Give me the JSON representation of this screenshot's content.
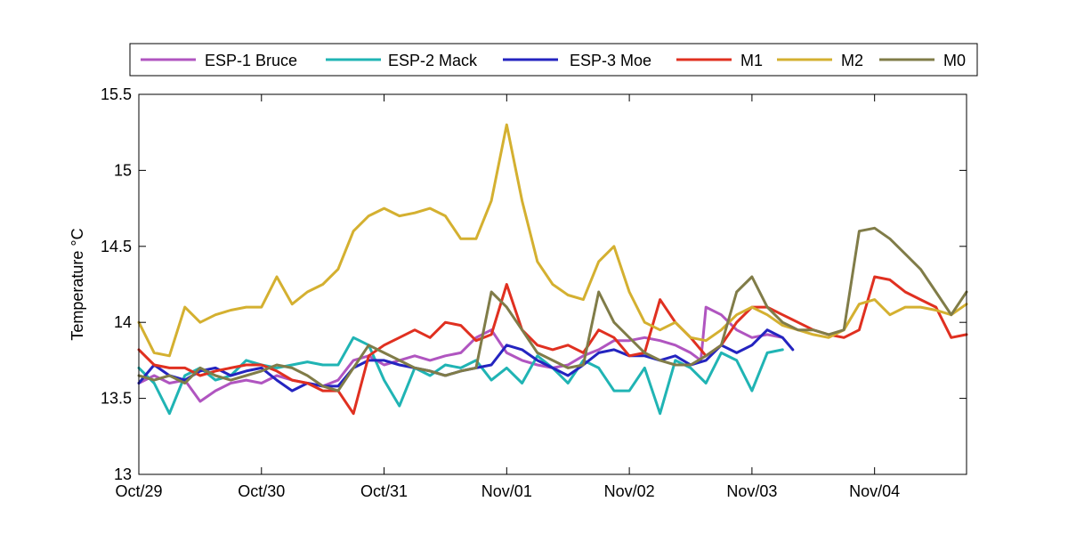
{
  "chart_data": {
    "type": "line",
    "title": "",
    "xlabel": "",
    "ylabel": "Temperature °C",
    "xlim": [
      "Oct/29",
      "Nov/04 18:00"
    ],
    "ylim": [
      13,
      15.5
    ],
    "x_ticks": [
      "Oct/29",
      "Oct/30",
      "Oct/31",
      "Nov/01",
      "Nov/02",
      "Nov/03",
      "Nov/04"
    ],
    "y_ticks": [
      "13",
      "13.5",
      "14",
      "14.5",
      "15",
      "15.5"
    ],
    "grid": false,
    "legend": "top, horizontal",
    "series": [
      {
        "name": "ESP-1 Bruce",
        "color": "#b055c0",
        "x": [
          "Oct/29 00:00",
          "Oct/29 03:00",
          "Oct/29 06:00",
          "Oct/29 09:00",
          "Oct/29 12:00",
          "Oct/29 15:00",
          "Oct/29 18:00",
          "Oct/29 21:00",
          "Oct/30 00:00",
          "Oct/30 03:00",
          "Oct/30 06:00",
          "Oct/30 09:00",
          "Oct/30 12:00",
          "Oct/30 15:00",
          "Oct/30 18:00",
          "Oct/30 21:00",
          "Oct/31 00:00",
          "Oct/31 03:00",
          "Oct/31 06:00",
          "Oct/31 09:00",
          "Oct/31 12:00",
          "Oct/31 15:00",
          "Oct/31 18:00",
          "Oct/31 21:00",
          "Nov/01 00:00",
          "Nov/01 03:00",
          "Nov/01 06:00",
          "Nov/01 09:00",
          "Nov/01 12:00",
          "Nov/01 15:00",
          "Nov/01 18:00",
          "Nov/01 21:00",
          "Nov/02 00:00",
          "Nov/02 03:00",
          "Nov/02 06:00",
          "Nov/02 09:00",
          "Nov/02 12:00",
          "Nov/02 14:00",
          "Nov/02 15:00",
          "Nov/02 18:00",
          "Nov/02 21:00",
          "Nov/03 00:00",
          "Nov/03 03:00",
          "Nov/03 06:00"
        ],
        "y": [
          13.6,
          13.65,
          13.6,
          13.62,
          13.48,
          13.55,
          13.6,
          13.62,
          13.6,
          13.65,
          13.62,
          13.6,
          13.58,
          13.62,
          13.75,
          13.78,
          13.72,
          13.75,
          13.78,
          13.75,
          13.78,
          13.8,
          13.9,
          13.95,
          13.8,
          13.75,
          13.72,
          13.7,
          13.72,
          13.78,
          13.82,
          13.88,
          13.88,
          13.9,
          13.88,
          13.85,
          13.8,
          13.75,
          14.1,
          14.05,
          13.95,
          13.9,
          13.92,
          13.9
        ]
      },
      {
        "name": "ESP-2 Mack",
        "color": "#20b4b4",
        "x": [
          "Oct/29 00:00",
          "Oct/29 03:00",
          "Oct/29 06:00",
          "Oct/29 09:00",
          "Oct/29 12:00",
          "Oct/29 15:00",
          "Oct/29 18:00",
          "Oct/29 21:00",
          "Oct/30 00:00",
          "Oct/30 03:00",
          "Oct/30 06:00",
          "Oct/30 09:00",
          "Oct/30 12:00",
          "Oct/30 15:00",
          "Oct/30 18:00",
          "Oct/30 21:00",
          "Oct/31 00:00",
          "Oct/31 03:00",
          "Oct/31 06:00",
          "Oct/31 09:00",
          "Oct/31 12:00",
          "Oct/31 15:00",
          "Oct/31 18:00",
          "Oct/31 21:00",
          "Nov/01 00:00",
          "Nov/01 03:00",
          "Nov/01 06:00",
          "Nov/01 09:00",
          "Nov/01 12:00",
          "Nov/01 15:00",
          "Nov/01 18:00",
          "Nov/01 21:00",
          "Nov/02 00:00",
          "Nov/02 03:00",
          "Nov/02 06:00",
          "Nov/02 09:00",
          "Nov/02 12:00",
          "Nov/02 15:00",
          "Nov/02 18:00",
          "Nov/02 21:00",
          "Nov/03 00:00",
          "Nov/03 03:00",
          "Nov/03 06:00"
        ],
        "y": [
          13.7,
          13.6,
          13.4,
          13.65,
          13.7,
          13.62,
          13.65,
          13.75,
          13.72,
          13.7,
          13.72,
          13.74,
          13.72,
          13.72,
          13.9,
          13.85,
          13.62,
          13.45,
          13.7,
          13.65,
          13.72,
          13.7,
          13.75,
          13.62,
          13.7,
          13.6,
          13.78,
          13.7,
          13.6,
          13.75,
          13.7,
          13.55,
          13.55,
          13.7,
          13.4,
          13.75,
          13.7,
          13.6,
          13.8,
          13.75,
          13.55,
          13.8,
          13.82
        ]
      },
      {
        "name": "ESP-3 Moe",
        "color": "#2424c0",
        "x": [
          "Oct/29 00:00",
          "Oct/29 03:00",
          "Oct/29 06:00",
          "Oct/29 09:00",
          "Oct/29 12:00",
          "Oct/29 15:00",
          "Oct/29 18:00",
          "Oct/29 21:00",
          "Oct/30 00:00",
          "Oct/30 03:00",
          "Oct/30 06:00",
          "Oct/30 09:00",
          "Oct/30 12:00",
          "Oct/30 15:00",
          "Oct/30 18:00",
          "Oct/30 21:00",
          "Oct/31 00:00",
          "Oct/31 03:00",
          "Oct/31 06:00",
          "Oct/31 09:00",
          "Oct/31 12:00",
          "Oct/31 15:00",
          "Oct/31 18:00",
          "Oct/31 21:00",
          "Nov/01 00:00",
          "Nov/01 03:00",
          "Nov/01 06:00",
          "Nov/01 09:00",
          "Nov/01 12:00",
          "Nov/01 15:00",
          "Nov/01 18:00",
          "Nov/01 21:00",
          "Nov/02 00:00",
          "Nov/02 03:00",
          "Nov/02 06:00",
          "Nov/02 09:00",
          "Nov/02 12:00",
          "Nov/02 15:00",
          "Nov/02 18:00",
          "Nov/02 21:00",
          "Nov/03 00:00",
          "Nov/03 03:00",
          "Nov/03 06:00",
          "Nov/03 08:00"
        ],
        "y": [
          13.6,
          13.72,
          13.65,
          13.62,
          13.68,
          13.7,
          13.65,
          13.68,
          13.7,
          13.62,
          13.55,
          13.6,
          13.58,
          13.58,
          13.7,
          13.75,
          13.75,
          13.72,
          13.7,
          13.68,
          13.65,
          13.68,
          13.7,
          13.72,
          13.85,
          13.82,
          13.75,
          13.7,
          13.65,
          13.72,
          13.8,
          13.82,
          13.78,
          13.78,
          13.75,
          13.78,
          13.72,
          13.75,
          13.85,
          13.8,
          13.85,
          13.95,
          13.9,
          13.82
        ]
      },
      {
        "name": "M1",
        "color": "#e03020",
        "x": [
          "Oct/29 00:00",
          "Oct/29 03:00",
          "Oct/29 06:00",
          "Oct/29 09:00",
          "Oct/29 12:00",
          "Oct/29 15:00",
          "Oct/29 18:00",
          "Oct/29 21:00",
          "Oct/30 00:00",
          "Oct/30 03:00",
          "Oct/30 06:00",
          "Oct/30 09:00",
          "Oct/30 12:00",
          "Oct/30 15:00",
          "Oct/30 18:00",
          "Oct/30 21:00",
          "Oct/31 00:00",
          "Oct/31 03:00",
          "Oct/31 06:00",
          "Oct/31 09:00",
          "Oct/31 12:00",
          "Oct/31 15:00",
          "Oct/31 18:00",
          "Oct/31 21:00",
          "Nov/01 00:00",
          "Nov/01 03:00",
          "Nov/01 06:00",
          "Nov/01 09:00",
          "Nov/01 12:00",
          "Nov/01 15:00",
          "Nov/01 18:00",
          "Nov/01 21:00",
          "Nov/02 00:00",
          "Nov/02 03:00",
          "Nov/02 06:00",
          "Nov/02 09:00",
          "Nov/02 12:00",
          "Nov/02 15:00",
          "Nov/02 18:00",
          "Nov/02 21:00",
          "Nov/03 00:00",
          "Nov/03 03:00",
          "Nov/03 06:00",
          "Nov/03 09:00",
          "Nov/03 12:00",
          "Nov/03 15:00",
          "Nov/03 18:00",
          "Nov/03 21:00",
          "Nov/04 00:00",
          "Nov/04 03:00",
          "Nov/04 06:00",
          "Nov/04 09:00",
          "Nov/04 12:00",
          "Nov/04 15:00",
          "Nov/04 18:00"
        ],
        "y": [
          13.82,
          13.72,
          13.7,
          13.7,
          13.65,
          13.68,
          13.7,
          13.72,
          13.72,
          13.68,
          13.62,
          13.6,
          13.55,
          13.55,
          13.4,
          13.78,
          13.85,
          13.9,
          13.95,
          13.9,
          14.0,
          13.98,
          13.88,
          13.92,
          14.25,
          13.95,
          13.85,
          13.82,
          13.85,
          13.8,
          13.95,
          13.9,
          13.78,
          13.8,
          14.15,
          14.0,
          13.9,
          13.78,
          13.85,
          14.0,
          14.1,
          14.1,
          14.05,
          14.0,
          13.95,
          13.92,
          13.9,
          13.95,
          14.3,
          14.28,
          14.2,
          14.15,
          14.1,
          13.9,
          13.92
        ]
      },
      {
        "name": "M2",
        "color": "#d4b030",
        "x": [
          "Oct/29 00:00",
          "Oct/29 03:00",
          "Oct/29 06:00",
          "Oct/29 09:00",
          "Oct/29 12:00",
          "Oct/29 15:00",
          "Oct/29 18:00",
          "Oct/29 21:00",
          "Oct/30 00:00",
          "Oct/30 03:00",
          "Oct/30 06:00",
          "Oct/30 09:00",
          "Oct/30 12:00",
          "Oct/30 15:00",
          "Oct/30 18:00",
          "Oct/30 21:00",
          "Oct/31 00:00",
          "Oct/31 03:00",
          "Oct/31 06:00",
          "Oct/31 09:00",
          "Oct/31 12:00",
          "Oct/31 15:00",
          "Oct/31 18:00",
          "Oct/31 21:00",
          "Nov/01 00:00",
          "Nov/01 03:00",
          "Nov/01 06:00",
          "Nov/01 09:00",
          "Nov/01 12:00",
          "Nov/01 15:00",
          "Nov/01 18:00",
          "Nov/01 21:00",
          "Nov/02 00:00",
          "Nov/02 03:00",
          "Nov/02 06:00",
          "Nov/02 09:00",
          "Nov/02 12:00",
          "Nov/02 15:00",
          "Nov/02 18:00",
          "Nov/02 21:00",
          "Nov/03 00:00",
          "Nov/03 03:00",
          "Nov/03 06:00",
          "Nov/03 09:00",
          "Nov/03 12:00",
          "Nov/03 15:00",
          "Nov/03 18:00",
          "Nov/03 21:00",
          "Nov/04 00:00",
          "Nov/04 03:00",
          "Nov/04 06:00",
          "Nov/04 09:00",
          "Nov/04 12:00",
          "Nov/04 15:00",
          "Nov/04 18:00"
        ],
        "y": [
          14.0,
          13.8,
          13.78,
          14.1,
          14.0,
          14.05,
          14.08,
          14.1,
          14.1,
          14.3,
          14.12,
          14.2,
          14.25,
          14.35,
          14.6,
          14.7,
          14.75,
          14.7,
          14.72,
          14.75,
          14.7,
          14.55,
          14.55,
          14.8,
          15.3,
          14.8,
          14.4,
          14.25,
          14.18,
          14.15,
          14.4,
          14.5,
          14.2,
          14.0,
          13.95,
          14.0,
          13.9,
          13.88,
          13.95,
          14.05,
          14.1,
          14.05,
          13.98,
          13.95,
          13.92,
          13.9,
          13.95,
          14.12,
          14.15,
          14.05,
          14.1,
          14.1,
          14.08,
          14.05,
          14.12
        ]
      },
      {
        "name": "M0",
        "color": "#807c48",
        "x": [
          "Oct/29 00:00",
          "Oct/29 03:00",
          "Oct/29 06:00",
          "Oct/29 09:00",
          "Oct/29 12:00",
          "Oct/29 15:00",
          "Oct/29 18:00",
          "Oct/29 21:00",
          "Oct/30 00:00",
          "Oct/30 03:00",
          "Oct/30 06:00",
          "Oct/30 09:00",
          "Oct/30 12:00",
          "Oct/30 15:00",
          "Oct/30 18:00",
          "Oct/30 21:00",
          "Oct/31 00:00",
          "Oct/31 03:00",
          "Oct/31 06:00",
          "Oct/31 09:00",
          "Oct/31 12:00",
          "Oct/31 15:00",
          "Oct/31 18:00",
          "Oct/31 21:00",
          "Nov/01 00:00",
          "Nov/01 03:00",
          "Nov/01 06:00",
          "Nov/01 09:00",
          "Nov/01 12:00",
          "Nov/01 15:00",
          "Nov/01 18:00",
          "Nov/01 21:00",
          "Nov/02 00:00",
          "Nov/02 03:00",
          "Nov/02 06:00",
          "Nov/02 09:00",
          "Nov/02 12:00",
          "Nov/02 15:00",
          "Nov/02 18:00",
          "Nov/02 21:00",
          "Nov/03 00:00",
          "Nov/03 03:00",
          "Nov/03 06:00",
          "Nov/03 09:00",
          "Nov/03 12:00",
          "Nov/03 15:00",
          "Nov/03 18:00",
          "Nov/03 21:00",
          "Nov/04 00:00",
          "Nov/04 03:00",
          "Nov/04 06:00",
          "Nov/04 09:00",
          "Nov/04 12:00",
          "Nov/04 15:00",
          "Nov/04 18:00"
        ],
        "y": [
          13.65,
          13.62,
          13.65,
          13.6,
          13.7,
          13.65,
          13.62,
          13.65,
          13.68,
          13.72,
          13.7,
          13.65,
          13.58,
          13.55,
          13.7,
          13.85,
          13.8,
          13.75,
          13.7,
          13.68,
          13.65,
          13.68,
          13.7,
          14.2,
          14.1,
          13.95,
          13.8,
          13.75,
          13.7,
          13.72,
          14.2,
          14.0,
          13.9,
          13.8,
          13.75,
          13.72,
          13.72,
          13.78,
          13.85,
          14.2,
          14.3,
          14.1,
          14.0,
          13.95,
          13.95,
          13.92,
          13.95,
          14.6,
          14.62,
          14.55,
          14.45,
          14.35,
          14.2,
          14.05,
          14.2
        ]
      }
    ]
  }
}
